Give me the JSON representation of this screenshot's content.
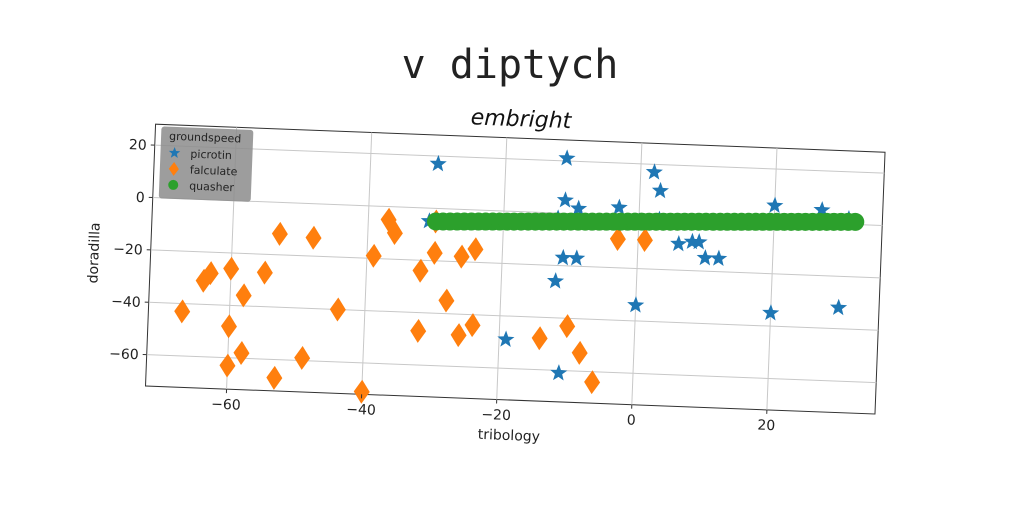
{
  "chart_data": {
    "type": "scatter",
    "suptitle": "v diptych",
    "title": "embright",
    "xlabel": "tribology",
    "ylabel": "doradilla",
    "xlim": [
      -72,
      36
    ],
    "ylim": [
      -72,
      28
    ],
    "xticks": [
      -60,
      -40,
      -20,
      0,
      20
    ],
    "yticks": [
      -60,
      -40,
      -20,
      0,
      20
    ],
    "grid": true,
    "legend": {
      "title": "groundspeed",
      "placement": "top-left"
    },
    "colors": {
      "picrotin": "#1f77b4",
      "falculate": "#ff7f0e",
      "quasher": "#2ca02c"
    },
    "series": [
      {
        "name": "picrotin",
        "marker": "star",
        "x": [
          -30,
          -11,
          2,
          3,
          -31,
          -11,
          -9,
          -3,
          3,
          -12,
          2,
          0,
          20,
          27,
          31,
          8,
          9,
          10,
          12,
          6,
          -11,
          -9,
          -12,
          0,
          20,
          30,
          -19,
          -11
        ],
        "y": [
          17,
          21,
          17,
          10,
          -5,
          5,
          2,
          3,
          -1,
          -2,
          -2,
          -2,
          6,
          5,
          2,
          -9,
          -9,
          -15,
          -15,
          -10,
          -17,
          -17,
          -26,
          -34,
          -35,
          -32,
          -49,
          -61
        ]
      },
      {
        "name": "falculate",
        "marker": "diamond",
        "x": [
          -30,
          -37,
          -36,
          -30,
          -26,
          -24,
          -32,
          -28,
          -39,
          -53,
          -48,
          -63,
          -64,
          -60,
          -58,
          -55,
          -67,
          -44,
          -32,
          -26,
          -24,
          -60,
          -58,
          -60,
          -49,
          -53,
          -40,
          -14,
          -10,
          -8,
          -6,
          -3,
          1
        ],
        "y": [
          -5,
          -5,
          -10,
          -17,
          -18,
          -15,
          -24,
          -35,
          -19,
          -12,
          -13,
          -28,
          -31,
          -26,
          -36,
          -27,
          -43,
          -40,
          -47,
          -48,
          -44,
          -48,
          -58,
          -63,
          -59,
          -67,
          -71,
          -48,
          -43,
          -53,
          -64,
          -9,
          -9
        ]
      },
      {
        "name": "quasher",
        "marker": "circle",
        "x_range": [
          -30,
          32
        ],
        "y_range": [
          -5,
          1
        ],
        "n_points": 60
      }
    ]
  }
}
